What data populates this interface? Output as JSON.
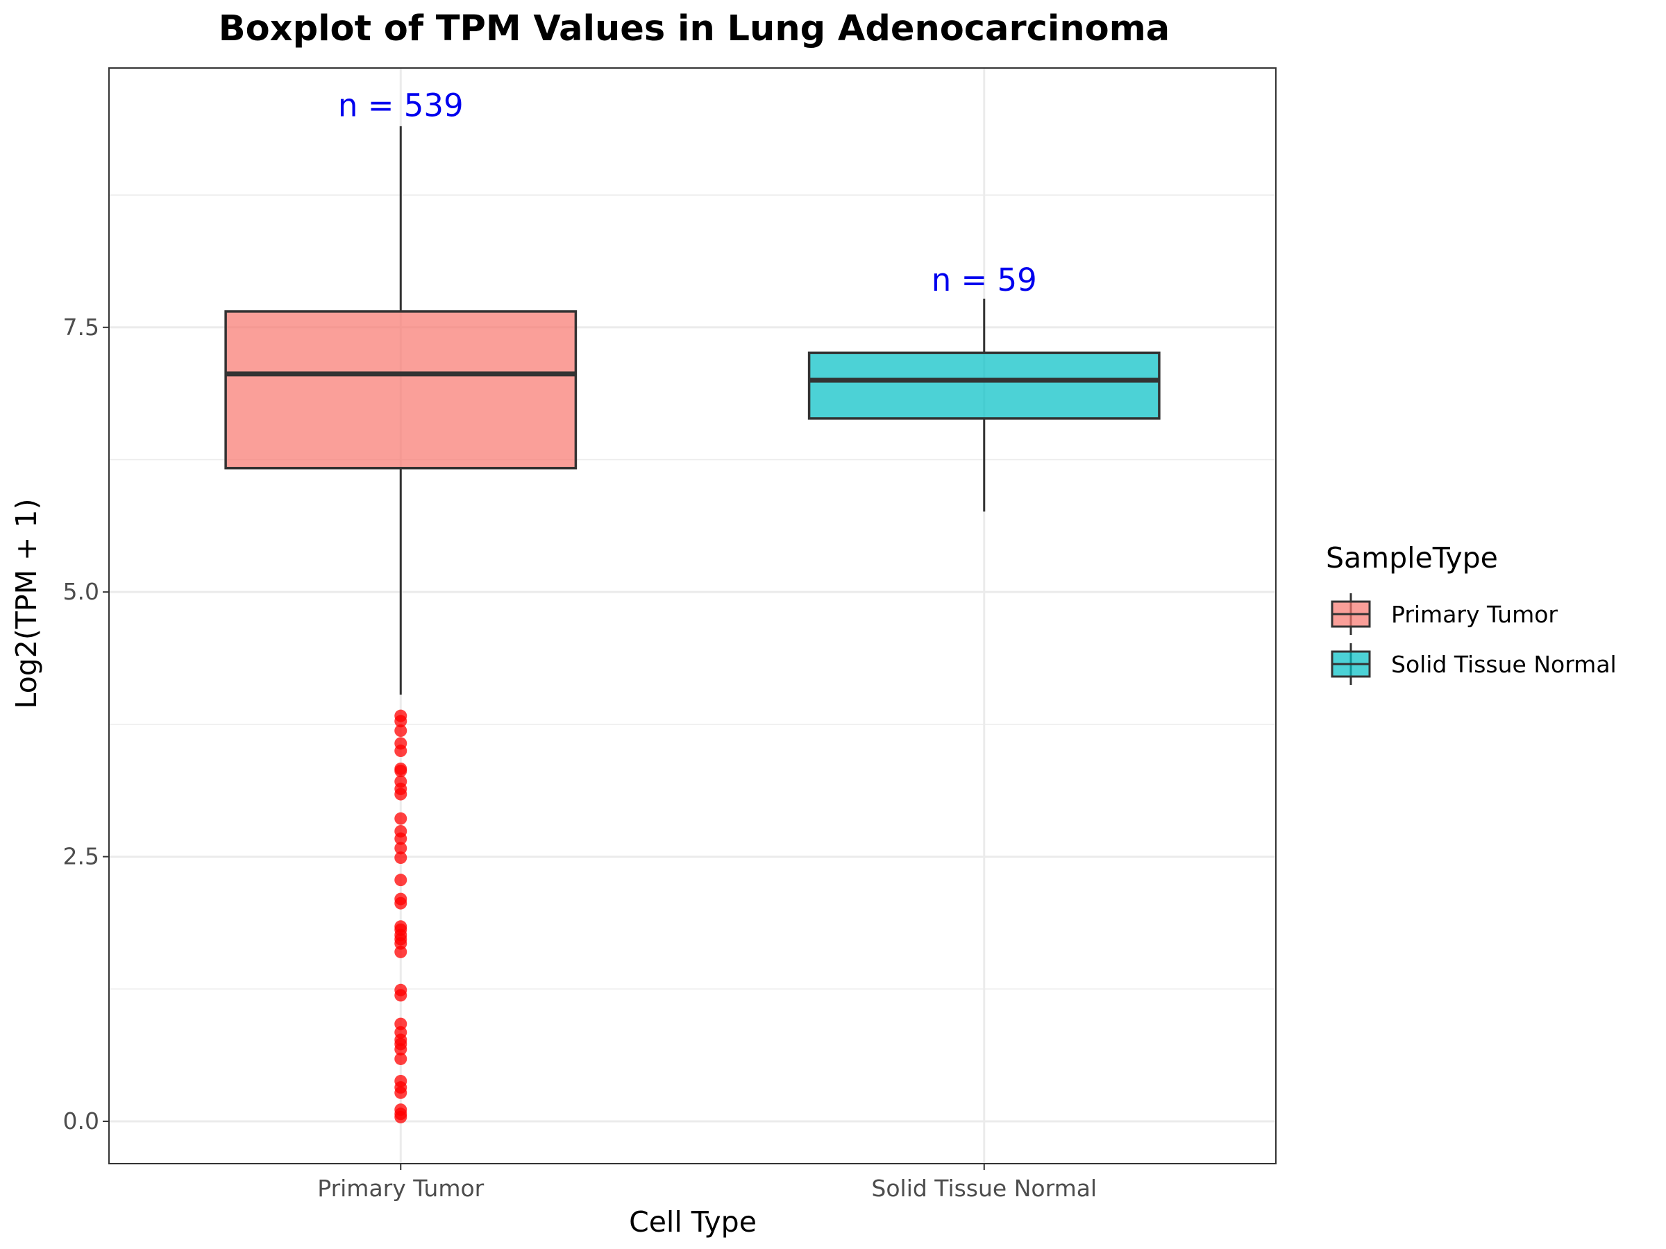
{
  "chart_data": {
    "type": "boxplot",
    "title": "Boxplot of TPM Values in Lung Adenocarcinoma",
    "xlabel": "Cell Type",
    "ylabel": "Log2(TPM + 1)",
    "ylim": [
      -0.4,
      9.95
    ],
    "yticks": [
      0.0,
      2.5,
      5.0,
      7.5
    ],
    "ytick_labels": [
      "0.0",
      "2.5",
      "5.0",
      "7.5"
    ],
    "grid": true,
    "legend": {
      "title": "SampleType",
      "position": "right",
      "entries": [
        "Primary Tumor",
        "Solid Tissue Normal"
      ]
    },
    "categories": [
      "Primary Tumor",
      "Solid Tissue Normal"
    ],
    "boxes": [
      {
        "name": "Primary Tumor",
        "color": "#F8766D",
        "whisker_low": 4.03,
        "q1": 6.17,
        "median": 7.06,
        "q3": 7.65,
        "whisker_high": 9.4,
        "n_label": "n = 539",
        "n_label_y": 9.6,
        "outliers": [
          3.83,
          3.78,
          3.69,
          3.57,
          3.5,
          3.33,
          3.31,
          3.21,
          3.14,
          3.09,
          2.86,
          2.74,
          2.67,
          2.58,
          2.49,
          2.28,
          2.1,
          2.06,
          1.84,
          1.81,
          1.76,
          1.72,
          1.68,
          1.6,
          1.24,
          1.19,
          0.92,
          0.84,
          0.77,
          0.73,
          0.68,
          0.59,
          0.38,
          0.32,
          0.27,
          0.11,
          0.07,
          0.04
        ]
      },
      {
        "name": "Solid Tissue Normal",
        "color": "#00BFC4",
        "whisker_low": 5.76,
        "q1": 6.64,
        "median": 7.0,
        "q3": 7.26,
        "whisker_high": 7.77,
        "n_label": "n = 59",
        "n_label_y": 7.95,
        "outliers": []
      }
    ],
    "outlier_color": "#FF0000",
    "n_label_color": "#0000EE"
  }
}
